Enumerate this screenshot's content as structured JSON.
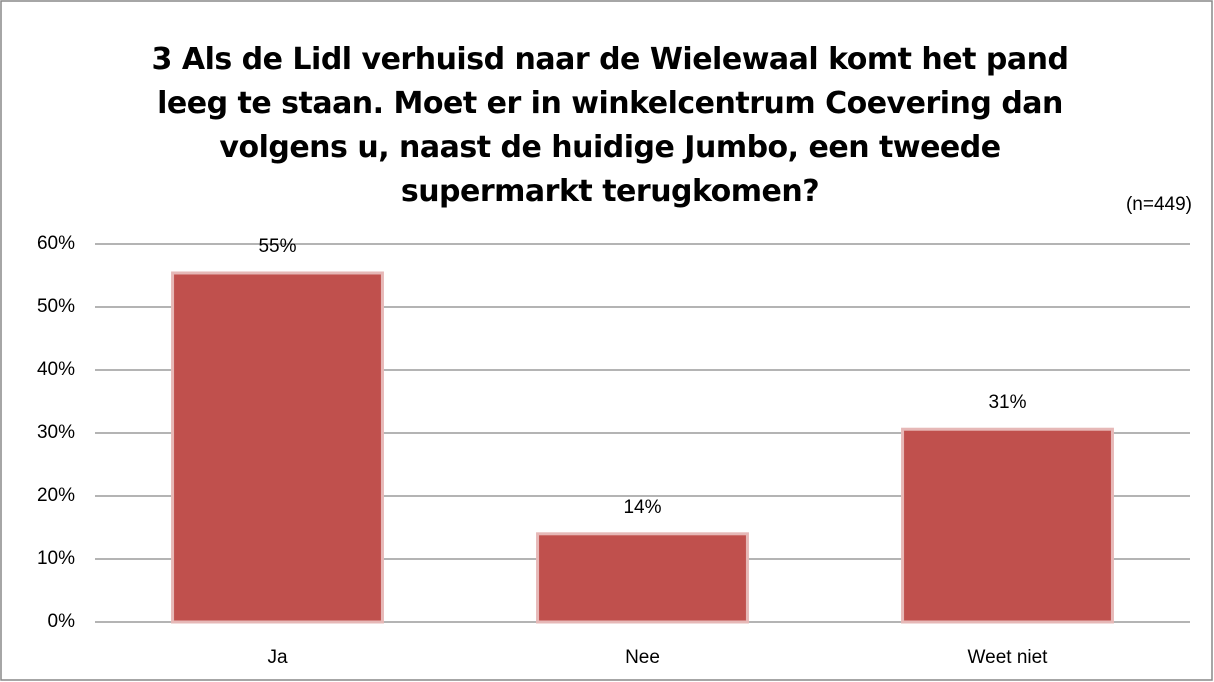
{
  "chart_data": {
    "type": "bar",
    "title": "3 Als de Lidl verhuisd naar de Wielewaal komt het pand leeg te staan. Moet er in winkelcentrum Coevering dan volgens u, naast de huidige Jumbo, een tweede supermarkt terugkomen?",
    "annotation": "(n=449)",
    "categories": [
      "Ja",
      "Nee",
      "Weet niet"
    ],
    "values": [
      55.4,
      14,
      30.6
    ],
    "value_labels": [
      "55%",
      "14%",
      "31%"
    ],
    "color": "#c0504d",
    "ylim": [
      0,
      60
    ],
    "yticks": [
      {
        "value": 0,
        "label": "0%"
      },
      {
        "value": 10,
        "label": "10%"
      },
      {
        "value": 20,
        "label": "20%"
      },
      {
        "value": 30,
        "label": "30%"
      },
      {
        "value": 40,
        "label": "40%"
      },
      {
        "value": 50,
        "label": "50%"
      },
      {
        "value": 60,
        "label": "60%"
      }
    ],
    "grid": true
  }
}
